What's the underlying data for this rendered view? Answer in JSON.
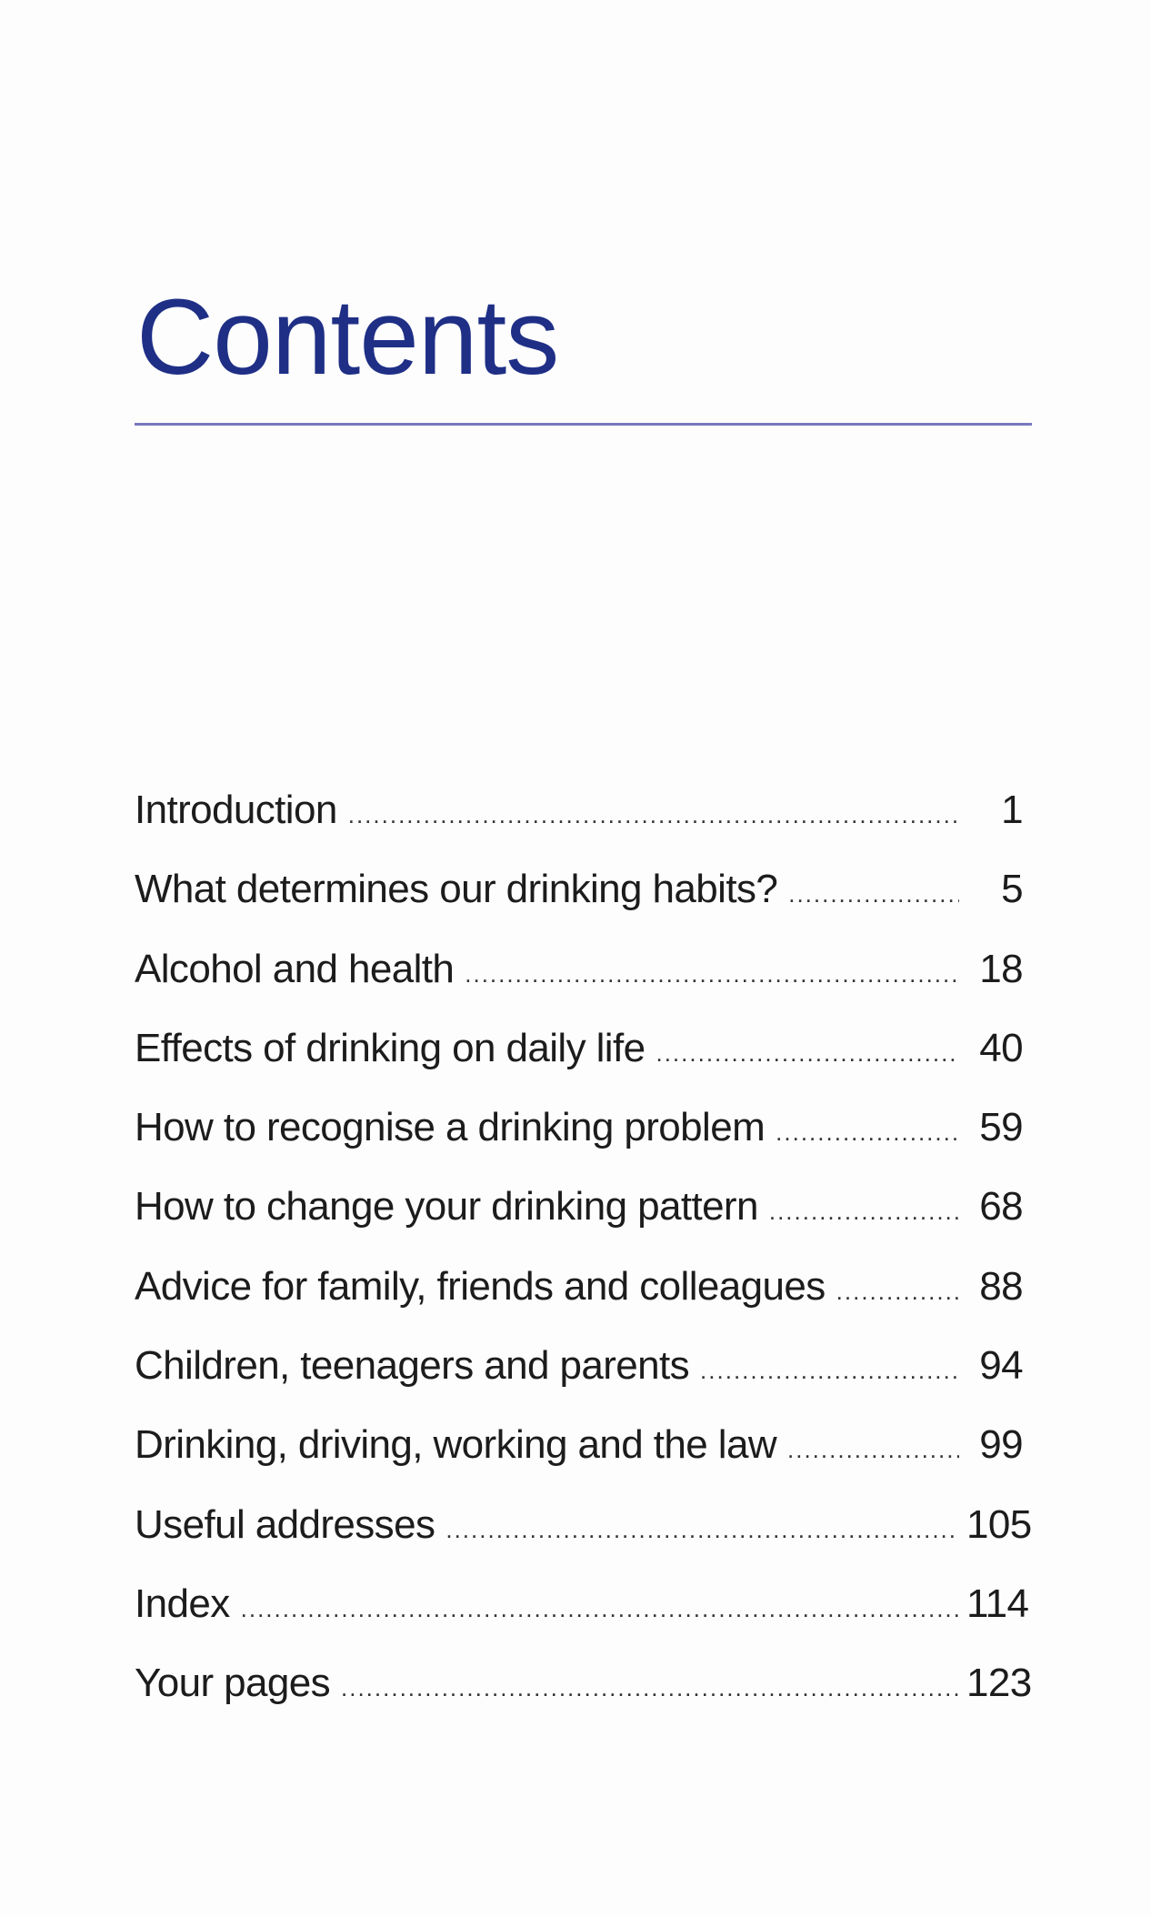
{
  "title": "Contents",
  "entries": [
    {
      "label": "Introduction",
      "page": "1"
    },
    {
      "label": "What determines our drinking habits?",
      "page": "5"
    },
    {
      "label": "Alcohol and health",
      "page": "18"
    },
    {
      "label": "Effects of drinking on daily life",
      "page": "40"
    },
    {
      "label": "How to recognise a drinking problem",
      "page": "59"
    },
    {
      "label": "How to change your drinking pattern",
      "page": "68"
    },
    {
      "label": "Advice for family, friends and colleagues",
      "page": "88"
    },
    {
      "label": "Children, teenagers and parents",
      "page": "94"
    },
    {
      "label": "Drinking, driving, working and the law",
      "page": "99"
    },
    {
      "label": "Useful addresses",
      "page": "105"
    },
    {
      "label": "Index",
      "page": "114"
    },
    {
      "label": "Your pages",
      "page": "123"
    }
  ],
  "colors": {
    "title": "#1f2f86",
    "rule": "#7878bf",
    "text": "#1c1c1c"
  }
}
